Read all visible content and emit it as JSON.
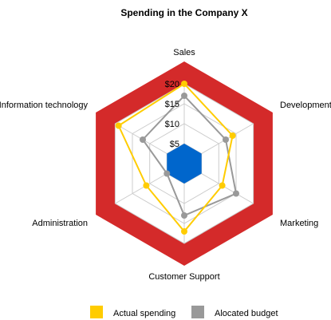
{
  "chart_data": {
    "type": "radar",
    "title": "Spending in the Company X",
    "axes": [
      "Sales",
      "Development",
      "Marketing",
      "Customer Support",
      "Administration",
      "Information technology"
    ],
    "r_ticks": [
      "$5",
      "$10",
      "$15",
      "$20"
    ],
    "r_tick_values": [
      5,
      10,
      15,
      20
    ],
    "r_max": 20,
    "center_band_max": 5,
    "series": [
      {
        "name": "Actual spending",
        "color": "#ffcc00",
        "values": [
          20,
          14,
          11,
          17,
          11,
          19
        ]
      },
      {
        "name": "Alocated budget",
        "color": "#999999",
        "values": [
          17,
          12,
          15,
          13,
          5,
          12
        ]
      }
    ],
    "colors": {
      "outer_band": "#d42a2a",
      "center_band": "#0066cc",
      "grid": "#cccccc"
    },
    "legend_position": "bottom"
  }
}
